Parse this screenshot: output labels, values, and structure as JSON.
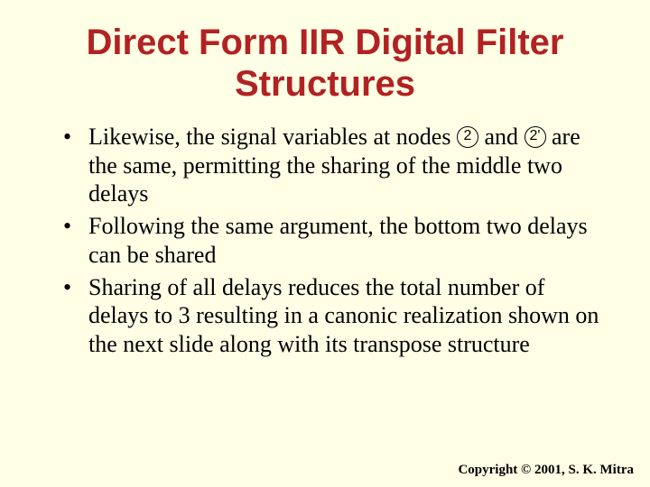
{
  "colors": {
    "background": "#ffffe6",
    "title": "#b22222",
    "body_text": "#000000",
    "circle_border": "#000000"
  },
  "typography": {
    "title_font": "Arial",
    "title_size_pt": 40,
    "title_weight": "bold",
    "body_font": "Times New Roman",
    "body_size_pt": 26,
    "copyright_size_pt": 15,
    "copyright_weight": "bold"
  },
  "title": {
    "line1": "Direct Form IIR Digital Filter",
    "line2": "Structures"
  },
  "bullets": {
    "b1_pre": "Likewise, the signal variables at nodes ",
    "b1_circ1": "2",
    "b1_mid": " and ",
    "b1_circ2": "2'",
    "b1_post": " are the same, permitting the sharing of the middle two delays",
    "b2": "Following the same argument, the bottom two delays can be shared",
    "b3": "Sharing of all delays reduces the total number of delays to 3 resulting in a canonic realization shown on the next slide along with its transpose structure"
  },
  "copyright": "Copyright © 2001, S. K. Mitra"
}
